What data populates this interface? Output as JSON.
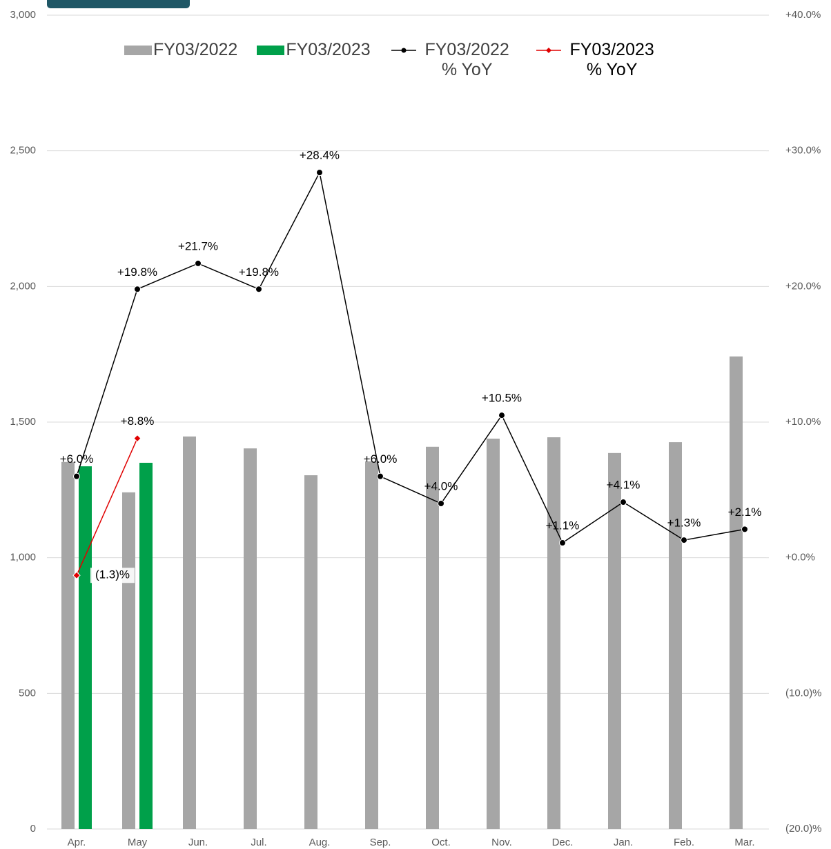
{
  "chart_data": {
    "type": "bar",
    "categories": [
      "Apr.",
      "May",
      "Jun.",
      "Jul.",
      "Aug.",
      "Sep.",
      "Oct.",
      "Nov.",
      "Dec.",
      "Jan.",
      "Feb.",
      "Mar."
    ],
    "series": [
      {
        "name": "FY03/2022",
        "type": "bar",
        "color": "#a6a6a6",
        "values": [
          1353,
          1241,
          1447,
          1403,
          1304,
          1355,
          1409,
          1439,
          1444,
          1386,
          1426,
          1742
        ]
      },
      {
        "name": "FY03/2023",
        "type": "bar",
        "color": "#00a04a",
        "values": [
          1337,
          1350,
          null,
          null,
          null,
          null,
          null,
          null,
          null,
          null,
          null,
          null
        ]
      },
      {
        "name": "FY03/2022 % YoY",
        "type": "line",
        "axis": "y2",
        "color": "#000000",
        "marker": "circle",
        "values": [
          6.0,
          19.8,
          21.7,
          19.8,
          28.4,
          6.0,
          4.0,
          10.5,
          1.1,
          4.1,
          1.3,
          2.1
        ],
        "value_labels": [
          "+6.0%",
          "+19.8%",
          "+21.7%",
          "+19.8%",
          "+28.4%",
          "+6.0%",
          "+4.0%",
          "+10.5%",
          "+1.1%",
          "+4.1%",
          "+1.3%",
          "+2.1%"
        ]
      },
      {
        "name": "FY03/2023 % YoY",
        "type": "line",
        "axis": "y2",
        "color": "#e00000",
        "marker": "diamond",
        "values": [
          -1.3,
          8.8,
          null,
          null,
          null,
          null,
          null,
          null,
          null,
          null,
          null,
          null
        ],
        "value_labels": [
          "(1.3)%",
          "+8.8%",
          null,
          null,
          null,
          null,
          null,
          null,
          null,
          null,
          null,
          null
        ]
      }
    ],
    "ylim": [
      0,
      3000
    ],
    "yticks": [
      0,
      500,
      {
        "value": 1000,
        "label": "1,000"
      },
      {
        "value": 1500,
        "label": "1,500"
      },
      {
        "value": 2000,
        "label": "2,000"
      },
      {
        "value": 2500,
        "label": "2,500"
      },
      {
        "value": 3000,
        "label": "3,000"
      }
    ],
    "y2lim": [
      -20,
      40
    ],
    "y2ticks": [
      {
        "value": -20,
        "label": "(20.0)%"
      },
      {
        "value": -10,
        "label": "(10.0)%"
      },
      {
        "value": 0,
        "label": "+0.0%"
      },
      {
        "value": 10,
        "label": "+10.0%"
      },
      {
        "value": 20,
        "label": "+20.0%"
      },
      {
        "value": 30,
        "label": "+30.0%"
      },
      {
        "value": 40,
        "label": "+40.0%"
      }
    ],
    "grid": true,
    "legend": "top"
  }
}
